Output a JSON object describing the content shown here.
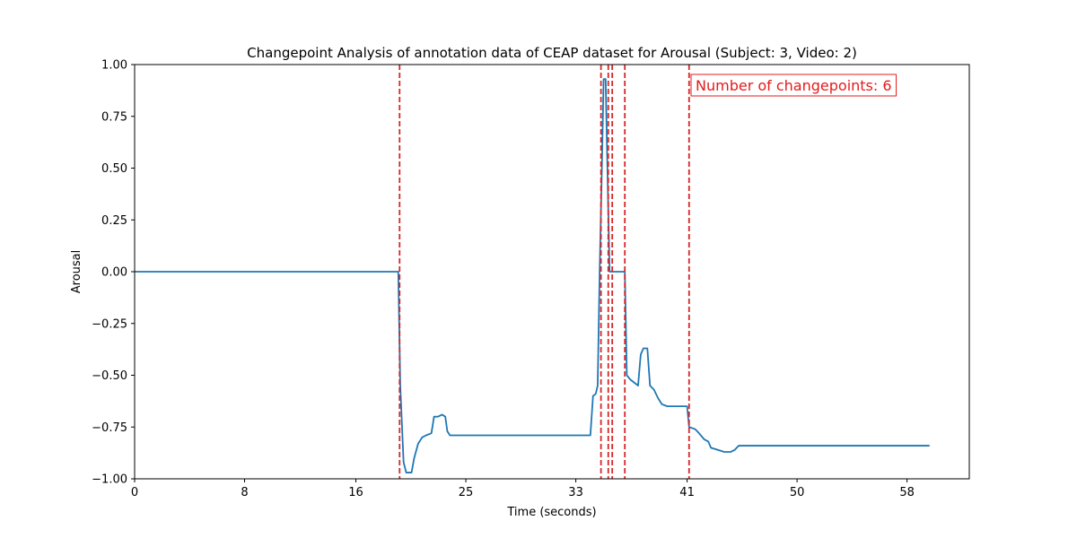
{
  "chart_data": {
    "type": "line",
    "title": "Changepoint Analysis of annotation data of CEAP dataset for Arousal (Subject: 3, Video: 2)",
    "xlabel": "Time (seconds)",
    "ylabel": "Arousal",
    "xlim": [
      0,
      63
    ],
    "ylim": [
      -1.0,
      1.0
    ],
    "x_ticks": [
      0,
      8.3,
      16.7,
      25.0,
      33.3,
      41.7,
      50.0,
      58.3
    ],
    "x_tick_labels": [
      "0",
      "8",
      "16",
      "25",
      "33",
      "41",
      "50",
      "58"
    ],
    "y_ticks": [
      -1.0,
      -0.75,
      -0.5,
      -0.25,
      0.0,
      0.25,
      0.5,
      0.75,
      1.0
    ],
    "y_tick_labels": [
      "−1.00",
      "−0.75",
      "−0.50",
      "−0.25",
      "0.00",
      "0.25",
      "0.50",
      "0.75",
      "1.00"
    ],
    "grid": false,
    "series": [
      {
        "color": "#1f77b4",
        "points": [
          [
            0,
            0.0
          ],
          [
            19.9,
            0.0
          ],
          [
            20.05,
            -0.55
          ],
          [
            20.3,
            -0.92
          ],
          [
            20.5,
            -0.97
          ],
          [
            20.9,
            -0.97
          ],
          [
            21.1,
            -0.9
          ],
          [
            21.4,
            -0.83
          ],
          [
            21.7,
            -0.8
          ],
          [
            22.0,
            -0.79
          ],
          [
            22.4,
            -0.78
          ],
          [
            22.6,
            -0.7
          ],
          [
            22.9,
            -0.7
          ],
          [
            23.2,
            -0.69
          ],
          [
            23.45,
            -0.7
          ],
          [
            23.6,
            -0.77
          ],
          [
            23.8,
            -0.79
          ],
          [
            24.5,
            -0.79
          ],
          [
            26,
            -0.79
          ],
          [
            28,
            -0.79
          ],
          [
            30,
            -0.79
          ],
          [
            32,
            -0.79
          ],
          [
            34.4,
            -0.79
          ],
          [
            34.6,
            -0.6
          ],
          [
            34.8,
            -0.59
          ],
          [
            34.95,
            -0.55
          ],
          [
            35.1,
            0.0
          ],
          [
            35.25,
            0.45
          ],
          [
            35.4,
            0.93
          ],
          [
            35.55,
            0.93
          ],
          [
            35.75,
            0.3
          ],
          [
            35.85,
            0.0
          ],
          [
            36.0,
            0.0
          ],
          [
            37.0,
            0.0
          ],
          [
            37.15,
            -0.5
          ],
          [
            37.4,
            -0.52
          ],
          [
            37.8,
            -0.54
          ],
          [
            38.0,
            -0.55
          ],
          [
            38.2,
            -0.4
          ],
          [
            38.4,
            -0.37
          ],
          [
            38.7,
            -0.37
          ],
          [
            38.9,
            -0.55
          ],
          [
            39.2,
            -0.57
          ],
          [
            39.5,
            -0.61
          ],
          [
            39.8,
            -0.64
          ],
          [
            40.2,
            -0.65
          ],
          [
            41.0,
            -0.65
          ],
          [
            41.7,
            -0.65
          ],
          [
            41.85,
            -0.75
          ],
          [
            42.3,
            -0.76
          ],
          [
            42.6,
            -0.78
          ],
          [
            43.0,
            -0.81
          ],
          [
            43.3,
            -0.82
          ],
          [
            43.5,
            -0.85
          ],
          [
            44.0,
            -0.86
          ],
          [
            44.5,
            -0.87
          ],
          [
            45.0,
            -0.87
          ],
          [
            45.3,
            -0.86
          ],
          [
            45.6,
            -0.84
          ],
          [
            46,
            -0.84
          ],
          [
            50,
            -0.84
          ],
          [
            55,
            -0.84
          ],
          [
            58,
            -0.84
          ],
          [
            60,
            -0.84
          ]
        ]
      }
    ],
    "changepoints": [
      20.0,
      35.2,
      35.75,
      36.05,
      37.0,
      41.85
    ],
    "changepoint_color": "#d62728",
    "annotation": {
      "text": "Number of changepoints: 6",
      "color": "#e41a1c",
      "placement": "top-right"
    }
  }
}
